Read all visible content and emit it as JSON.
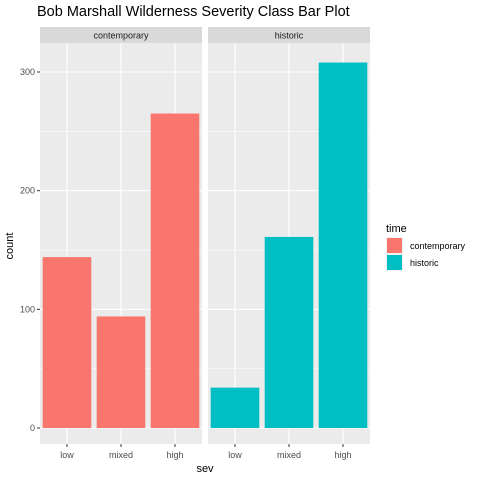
{
  "chart_data": {
    "type": "bar",
    "title": "Bob Marshall Wilderness Severity Class Bar Plot",
    "xlabel": "sev",
    "ylabel": "count",
    "categories": [
      "low",
      "mixed",
      "high"
    ],
    "ylim": [
      0,
      330
    ],
    "yticks": [
      0,
      100,
      200,
      300
    ],
    "facets": [
      {
        "name": "contemporary",
        "values": [
          144,
          94,
          265
        ],
        "fill": "#F8766D"
      },
      {
        "name": "historic",
        "values": [
          34,
          161,
          308
        ],
        "fill": "#00BFC4"
      }
    ],
    "legend": {
      "title": "time",
      "position": "right",
      "entries": [
        {
          "label": "contemporary",
          "color": "#F8766D"
        },
        {
          "label": "historic",
          "color": "#00BFC4"
        }
      ]
    },
    "grid": true,
    "panel_background": "#EBEBEB",
    "strip_background": "#D9D9D9"
  }
}
